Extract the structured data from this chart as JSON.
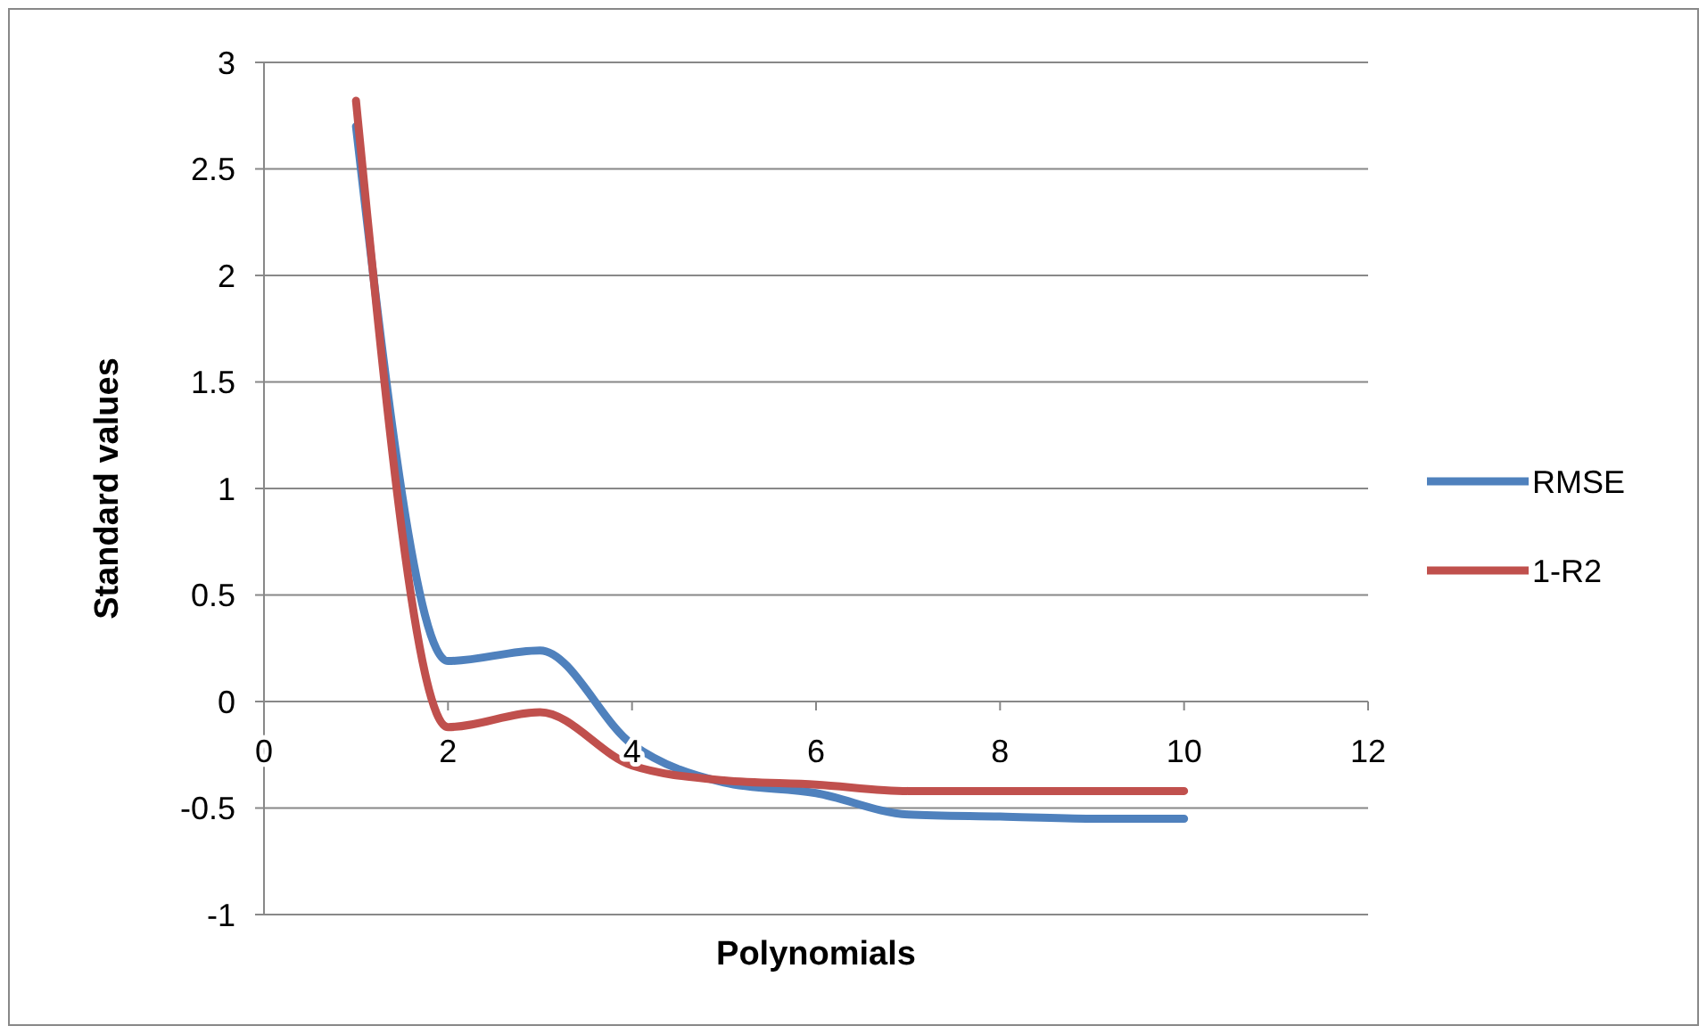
{
  "chart_data": {
    "type": "line",
    "xlabel": "Polynomials",
    "ylabel": "Standard values",
    "x": [
      1,
      2,
      3,
      4,
      5,
      6,
      7,
      8,
      9,
      10
    ],
    "series": [
      {
        "name": "RMSE",
        "color": "#4f81bd",
        "values": [
          2.7,
          0.19,
          0.24,
          -0.2,
          -0.38,
          -0.43,
          -0.53,
          -0.54,
          -0.55,
          -0.55
        ]
      },
      {
        "name": "1-R2",
        "color": "#c0504d",
        "values": [
          2.82,
          -0.12,
          -0.05,
          -0.3,
          -0.37,
          -0.39,
          -0.42,
          -0.42,
          -0.42,
          -0.42
        ]
      }
    ],
    "xlim": [
      0,
      12
    ],
    "xticks": [
      0,
      2,
      4,
      6,
      8,
      10,
      12
    ],
    "ylim": [
      -1,
      3
    ],
    "yticks": [
      -1,
      -0.5,
      0,
      0.5,
      1,
      1.5,
      2,
      2.5,
      3
    ],
    "grid": "y",
    "legend": "right",
    "marker": "none",
    "line_style": "solid"
  }
}
